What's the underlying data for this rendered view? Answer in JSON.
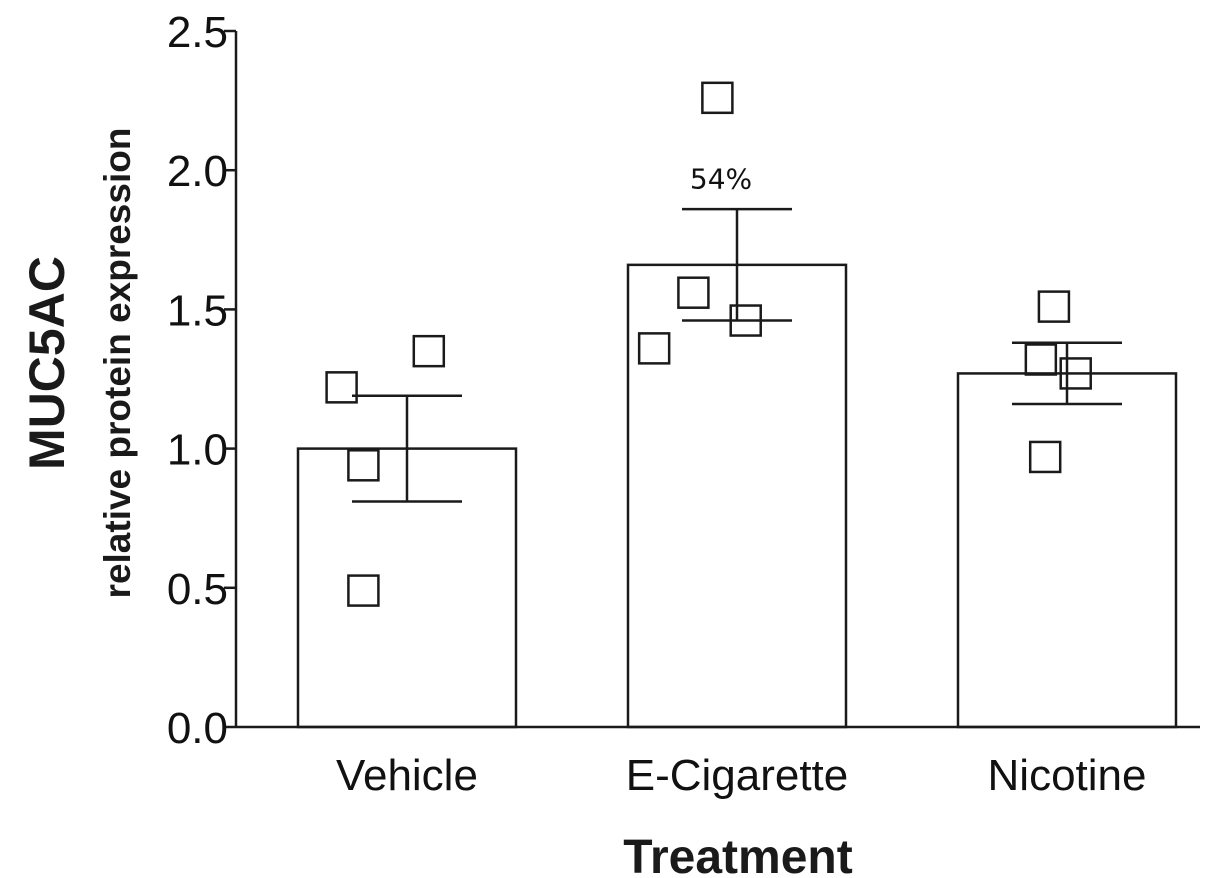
{
  "chart_data": {
    "type": "bar",
    "title": "",
    "xlabel": "Treatment",
    "ylabel": "MUC5AC",
    "ylabel_sub": "relative protein expression",
    "ylim": [
      0,
      2.5
    ],
    "yticks": [
      "0.0",
      "0.5",
      "1.0",
      "1.5",
      "2.0",
      "2.5"
    ],
    "ytick_values": [
      0,
      0.5,
      1.0,
      1.5,
      2.0,
      2.5
    ],
    "grid": false,
    "legend": "none",
    "categories": [
      "Vehicle",
      "E-Cigarette",
      "Nicotine"
    ],
    "values": [
      1.0,
      1.66,
      1.27
    ],
    "error_upper": [
      1.19,
      1.86,
      1.38
    ],
    "error_lower": [
      0.81,
      1.46,
      1.16
    ],
    "points": [
      [
        {
          "x": 0.2,
          "y": 1.22
        },
        {
          "x": 0.6,
          "y": 1.35
        },
        {
          "x": 0.3,
          "y": 0.94
        },
        {
          "x": 0.3,
          "y": 0.49
        }
      ],
      [
        {
          "x": 0.41,
          "y": 2.26
        },
        {
          "x": 0.3,
          "y": 1.56
        },
        {
          "x": 0.54,
          "y": 1.46
        },
        {
          "x": 0.12,
          "y": 1.36
        }
      ],
      [
        {
          "x": 0.44,
          "y": 1.51
        },
        {
          "x": 0.38,
          "y": 1.32
        },
        {
          "x": 0.54,
          "y": 1.27
        },
        {
          "x": 0.4,
          "y": 0.97
        }
      ]
    ],
    "annotations": [
      {
        "category_index": 1,
        "text": "54%",
        "y": 1.97
      }
    ],
    "colors": {
      "bar_fill": "#ffffff",
      "stroke": "#1a1a1a"
    }
  }
}
